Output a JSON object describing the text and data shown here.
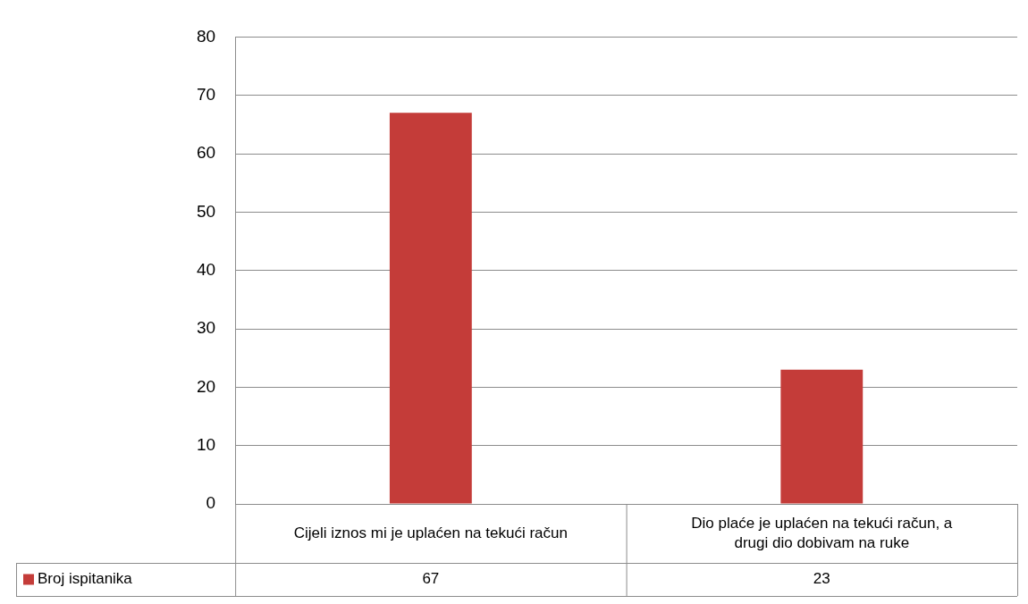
{
  "chart_data": {
    "type": "bar",
    "categories": [
      "Cijeli iznos mi je uplaćen na tekući račun",
      "Dio plaće je uplaćen na tekući račun, a drugi dio dobivam na ruke"
    ],
    "series": [
      {
        "name": "Broj ispitanika",
        "color": "#c43c39",
        "values": [
          67,
          23
        ]
      }
    ],
    "ylim": [
      0,
      80
    ],
    "yticks": [
      0,
      10,
      20,
      30,
      40,
      50,
      60,
      70,
      80
    ],
    "grid": "y",
    "legend": "bottom",
    "data_labels": true
  }
}
